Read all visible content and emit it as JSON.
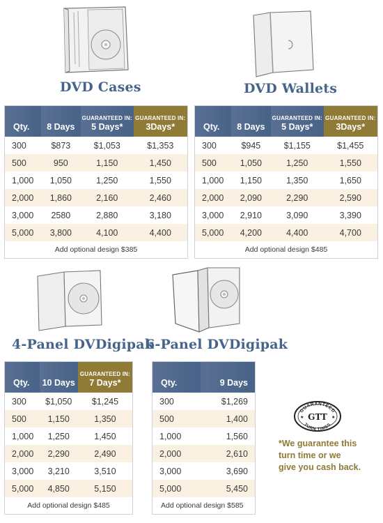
{
  "products": {
    "dvd_cases": {
      "title": "DVD Cases",
      "headers": {
        "qty": "Qty.",
        "standard": "8 Days",
        "g1_small": "GUARANTEED IN:",
        "g1": "5 Days*",
        "g2_small": "GUARANTEED IN:",
        "g2": "3Days*"
      },
      "rows": [
        [
          "300",
          "$873",
          "$1,053",
          "$1,353"
        ],
        [
          "500",
          "950",
          "1,150",
          "1,450"
        ],
        [
          "1,000",
          "1,050",
          "1,250",
          "1,550"
        ],
        [
          "2,000",
          "1,860",
          "2,160",
          "2,460"
        ],
        [
          "3,000",
          "2580",
          "2,880",
          "3,180"
        ],
        [
          "5,000",
          "3,800",
          "4,100",
          "4,400"
        ]
      ],
      "note": "Add optional design $385"
    },
    "dvd_wallets": {
      "title": "DVD Wallets",
      "headers": {
        "qty": "Qty.",
        "standard": "8 Days",
        "g1_small": "GUARANTEED IN:",
        "g1": "5 Days*",
        "g2_small": "GUARANTEED IN:",
        "g2": "3Days*"
      },
      "rows": [
        [
          "300",
          "$945",
          "$1,155",
          "$1,455"
        ],
        [
          "500",
          "1,050",
          "1,250",
          "1,550"
        ],
        [
          "1,000",
          "1,150",
          "1,350",
          "1,650"
        ],
        [
          "2,000",
          "2,090",
          "2,290",
          "2,590"
        ],
        [
          "3,000",
          "2,910",
          "3,090",
          "3,390"
        ],
        [
          "5,000",
          "4,200",
          "4,400",
          "4,700"
        ]
      ],
      "note": "Add optional design $485"
    },
    "digipak_4": {
      "title": "4-Panel DVDigipak",
      "headers": {
        "qty": "Qty.",
        "standard": "10 Days",
        "g1_small": "GUARANTEED IN:",
        "g1": "7 Days*"
      },
      "rows": [
        [
          "300",
          "$1,050",
          "$1,245"
        ],
        [
          "500",
          "1,150",
          "1,350"
        ],
        [
          "1,000",
          "1,250",
          "1,450"
        ],
        [
          "2,000",
          "2,290",
          "2,490"
        ],
        [
          "3,000",
          "3,210",
          "3,510"
        ],
        [
          "5,000",
          "4,850",
          "5,150"
        ]
      ],
      "note": "Add optional design $485"
    },
    "digipak_6": {
      "title": "6-Panel DVDigipak",
      "headers": {
        "qty": "Qty.",
        "standard": "9 Days"
      },
      "rows": [
        [
          "300",
          "$1,269"
        ],
        [
          "500",
          "1,400"
        ],
        [
          "1,000",
          "1,560"
        ],
        [
          "2,000",
          "2,610"
        ],
        [
          "3,000",
          "3,690"
        ],
        [
          "5,000",
          "5,450"
        ]
      ],
      "note": "Add optional design $585"
    }
  },
  "badge": {
    "text_top": "GUARANTEED",
    "text_mid": "GTT",
    "text_bottom": "TURN TIMES"
  },
  "guarantee_note": "*We guarantee this\nturn time or we\ngive you cash back.",
  "colors": {
    "header_blue": "#476387",
    "header_gold": "#8f7a36",
    "row_shade": "#fbf1e2",
    "title_blue": "#46648a"
  }
}
